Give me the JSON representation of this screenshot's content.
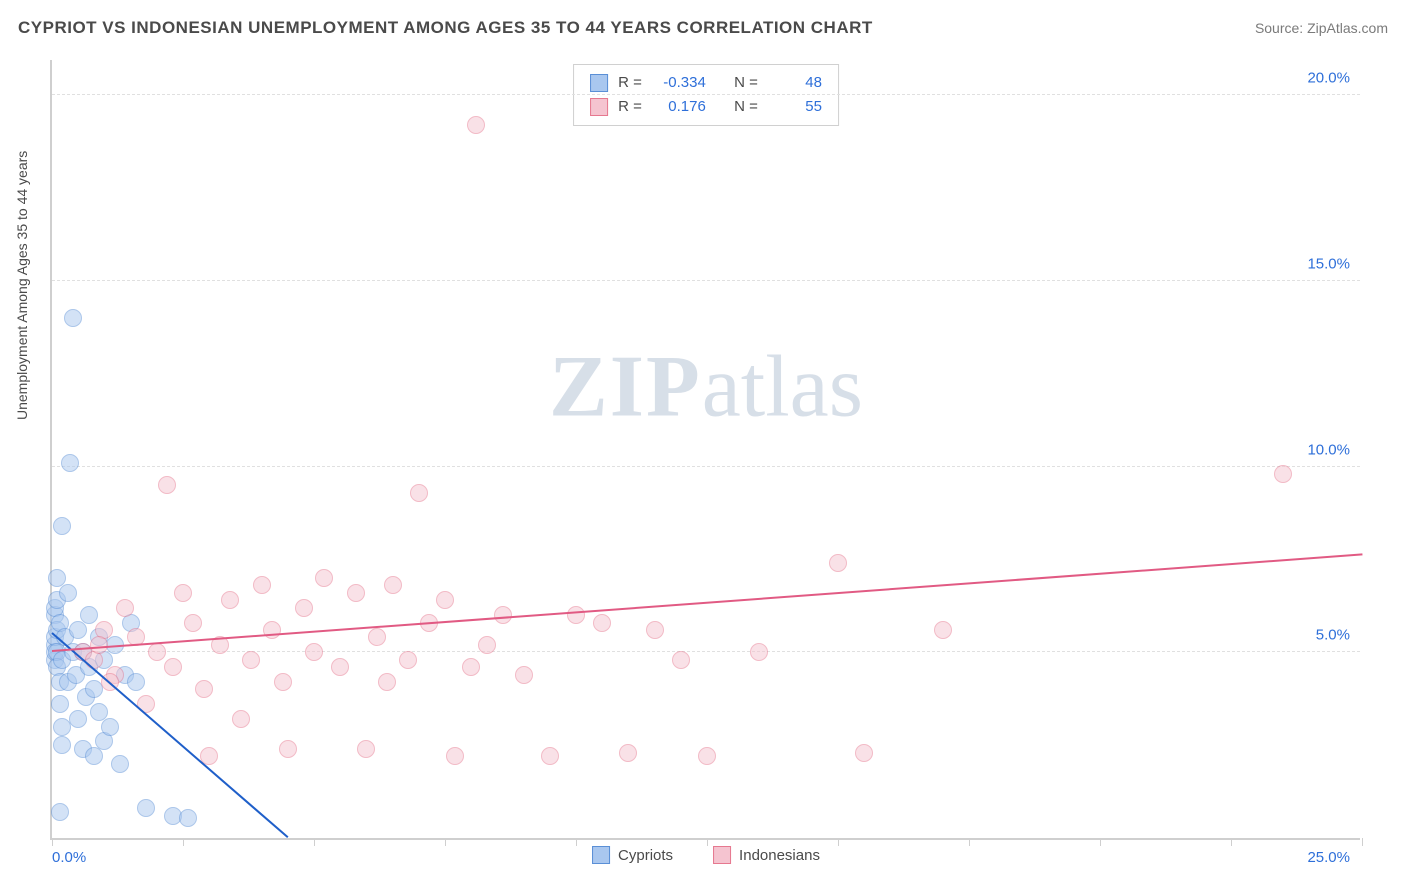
{
  "title": "CYPRIOT VS INDONESIAN UNEMPLOYMENT AMONG AGES 35 TO 44 YEARS CORRELATION CHART",
  "source": "Source: ZipAtlas.com",
  "ylabel": "Unemployment Among Ages 35 to 44 years",
  "watermark_zip": "ZIP",
  "watermark_atlas": "atlas",
  "chart": {
    "type": "scatter",
    "xlim": [
      0,
      25
    ],
    "ylim": [
      0,
      21
    ],
    "x_origin_label": "0.0%",
    "x_max_label": "25.0%",
    "x_tick_positions": [
      0,
      2.5,
      5,
      7.5,
      10,
      12.5,
      15,
      17.5,
      20,
      22.5,
      25
    ],
    "y_gridlines": [
      {
        "value": 5,
        "label": "5.0%"
      },
      {
        "value": 10,
        "label": "10.0%"
      },
      {
        "value": 15,
        "label": "15.0%"
      },
      {
        "value": 20,
        "label": "20.0%"
      }
    ],
    "background_color": "#ffffff",
    "grid_color": "#e0e0e0",
    "axis_color": "#cfcfcf",
    "tick_label_color": "#2e6fd9",
    "point_radius": 9,
    "point_opacity": 0.5
  },
  "series": [
    {
      "name": "Cypriots",
      "label": "Cypriots",
      "fill_color": "#a9c7ef",
      "stroke_color": "#5a8fd6",
      "trend_color": "#1f5fc9",
      "R_label": "R =",
      "R_value": "-0.334",
      "N_label": "N =",
      "N_value": "48",
      "trend": {
        "x1": 0,
        "y1": 5.5,
        "x2": 4.5,
        "y2": 0
      },
      "points": [
        [
          0.05,
          5.2
        ],
        [
          0.05,
          4.8
        ],
        [
          0.05,
          5.0
        ],
        [
          0.05,
          5.4
        ],
        [
          0.05,
          6.0
        ],
        [
          0.05,
          6.2
        ],
        [
          0.1,
          5.6
        ],
        [
          0.1,
          5.0
        ],
        [
          0.1,
          4.6
        ],
        [
          0.1,
          7.0
        ],
        [
          0.1,
          6.4
        ],
        [
          0.15,
          3.6
        ],
        [
          0.15,
          4.2
        ],
        [
          0.15,
          5.8
        ],
        [
          0.2,
          3.0
        ],
        [
          0.2,
          2.5
        ],
        [
          0.2,
          4.8
        ],
        [
          0.2,
          8.4
        ],
        [
          0.25,
          5.4
        ],
        [
          0.3,
          4.2
        ],
        [
          0.3,
          6.6
        ],
        [
          0.35,
          10.1
        ],
        [
          0.4,
          14.0
        ],
        [
          0.4,
          5.0
        ],
        [
          0.45,
          4.4
        ],
        [
          0.5,
          3.2
        ],
        [
          0.5,
          5.6
        ],
        [
          0.6,
          2.4
        ],
        [
          0.6,
          5.0
        ],
        [
          0.65,
          3.8
        ],
        [
          0.7,
          4.6
        ],
        [
          0.7,
          6.0
        ],
        [
          0.8,
          4.0
        ],
        [
          0.8,
          2.2
        ],
        [
          0.9,
          5.4
        ],
        [
          0.9,
          3.4
        ],
        [
          1.0,
          2.6
        ],
        [
          1.0,
          4.8
        ],
        [
          1.1,
          3.0
        ],
        [
          1.2,
          5.2
        ],
        [
          1.3,
          2.0
        ],
        [
          1.4,
          4.4
        ],
        [
          1.5,
          5.8
        ],
        [
          1.6,
          4.2
        ],
        [
          1.8,
          0.8
        ],
        [
          2.3,
          0.6
        ],
        [
          2.6,
          0.55
        ],
        [
          0.15,
          0.7
        ]
      ]
    },
    {
      "name": "Indonesians",
      "label": "Indonesians",
      "fill_color": "#f5c4d0",
      "stroke_color": "#e6788f",
      "trend_color": "#e15a83",
      "R_label": "R =",
      "R_value": "0.176",
      "N_label": "N =",
      "N_value": "55",
      "trend": {
        "x1": 0,
        "y1": 5.0,
        "x2": 25,
        "y2": 7.6
      },
      "points": [
        [
          0.6,
          5.0
        ],
        [
          0.8,
          4.8
        ],
        [
          1.0,
          5.6
        ],
        [
          1.2,
          4.4
        ],
        [
          1.4,
          6.2
        ],
        [
          1.6,
          5.4
        ],
        [
          1.8,
          3.6
        ],
        [
          2.0,
          5.0
        ],
        [
          2.2,
          9.5
        ],
        [
          2.3,
          4.6
        ],
        [
          2.5,
          6.6
        ],
        [
          2.7,
          5.8
        ],
        [
          2.9,
          4.0
        ],
        [
          3.0,
          2.2
        ],
        [
          3.2,
          5.2
        ],
        [
          3.4,
          6.4
        ],
        [
          3.6,
          3.2
        ],
        [
          3.8,
          4.8
        ],
        [
          4.0,
          6.8
        ],
        [
          4.2,
          5.6
        ],
        [
          4.5,
          2.4
        ],
        [
          4.8,
          6.2
        ],
        [
          5.0,
          5.0
        ],
        [
          5.2,
          7.0
        ],
        [
          5.5,
          4.6
        ],
        [
          5.8,
          6.6
        ],
        [
          6.0,
          2.4
        ],
        [
          6.2,
          5.4
        ],
        [
          6.5,
          6.8
        ],
        [
          6.8,
          4.8
        ],
        [
          7.0,
          9.3
        ],
        [
          7.2,
          5.8
        ],
        [
          7.5,
          6.4
        ],
        [
          7.7,
          2.2
        ],
        [
          8.0,
          4.6
        ],
        [
          8.1,
          19.2
        ],
        [
          8.3,
          5.2
        ],
        [
          8.6,
          6.0
        ],
        [
          9.0,
          4.4
        ],
        [
          9.5,
          2.2
        ],
        [
          10.0,
          6.0
        ],
        [
          10.5,
          5.8
        ],
        [
          11.0,
          2.3
        ],
        [
          11.5,
          5.6
        ],
        [
          12.0,
          4.8
        ],
        [
          12.5,
          2.2
        ],
        [
          13.5,
          5.0
        ],
        [
          15.0,
          7.4
        ],
        [
          15.5,
          2.3
        ],
        [
          17.0,
          5.6
        ],
        [
          23.5,
          9.8
        ],
        [
          0.9,
          5.2
        ],
        [
          1.1,
          4.2
        ],
        [
          4.4,
          4.2
        ],
        [
          6.4,
          4.2
        ]
      ]
    }
  ],
  "bottom_legend": [
    {
      "label": "Cypriots",
      "fill": "#a9c7ef",
      "stroke": "#5a8fd6"
    },
    {
      "label": "Indonesians",
      "fill": "#f5c4d0",
      "stroke": "#e6788f"
    }
  ]
}
